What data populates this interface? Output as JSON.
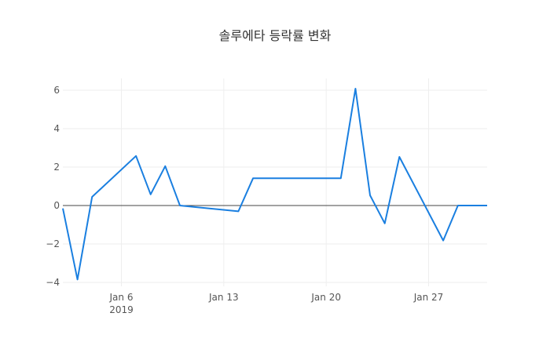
{
  "chart_data": {
    "type": "line",
    "title": "솔루에타 등락률 변화",
    "xlabel": "",
    "ylabel": "",
    "x": [
      "2019-01-02",
      "2019-01-03",
      "2019-01-04",
      "2019-01-07",
      "2019-01-08",
      "2019-01-09",
      "2019-01-10",
      "2019-01-14",
      "2019-01-15",
      "2019-01-21",
      "2019-01-22",
      "2019-01-23",
      "2019-01-24",
      "2019-01-25",
      "2019-01-28",
      "2019-01-29",
      "2019-01-31"
    ],
    "series": [
      {
        "name": "등락률",
        "color": "#1a7fe0",
        "values": [
          -0.15,
          -3.85,
          0.45,
          2.58,
          0.58,
          2.05,
          0.0,
          -0.3,
          1.42,
          1.42,
          6.08,
          0.53,
          -0.93,
          2.53,
          -1.82,
          0.0,
          0.0
        ]
      }
    ],
    "xticks": [
      "Jan 6",
      "Jan 13",
      "Jan 20",
      "Jan 27"
    ],
    "xtick_sublabel": "2019",
    "yticks": [
      "−4",
      "−2",
      "0",
      "2",
      "4",
      "6"
    ],
    "ytick_values": [
      -4,
      -2,
      0,
      2,
      4,
      6
    ],
    "xlim": [
      "2019-01-02",
      "2019-01-31"
    ],
    "ylim": [
      -4.2,
      6.6
    ],
    "grid": true,
    "legend": false
  }
}
